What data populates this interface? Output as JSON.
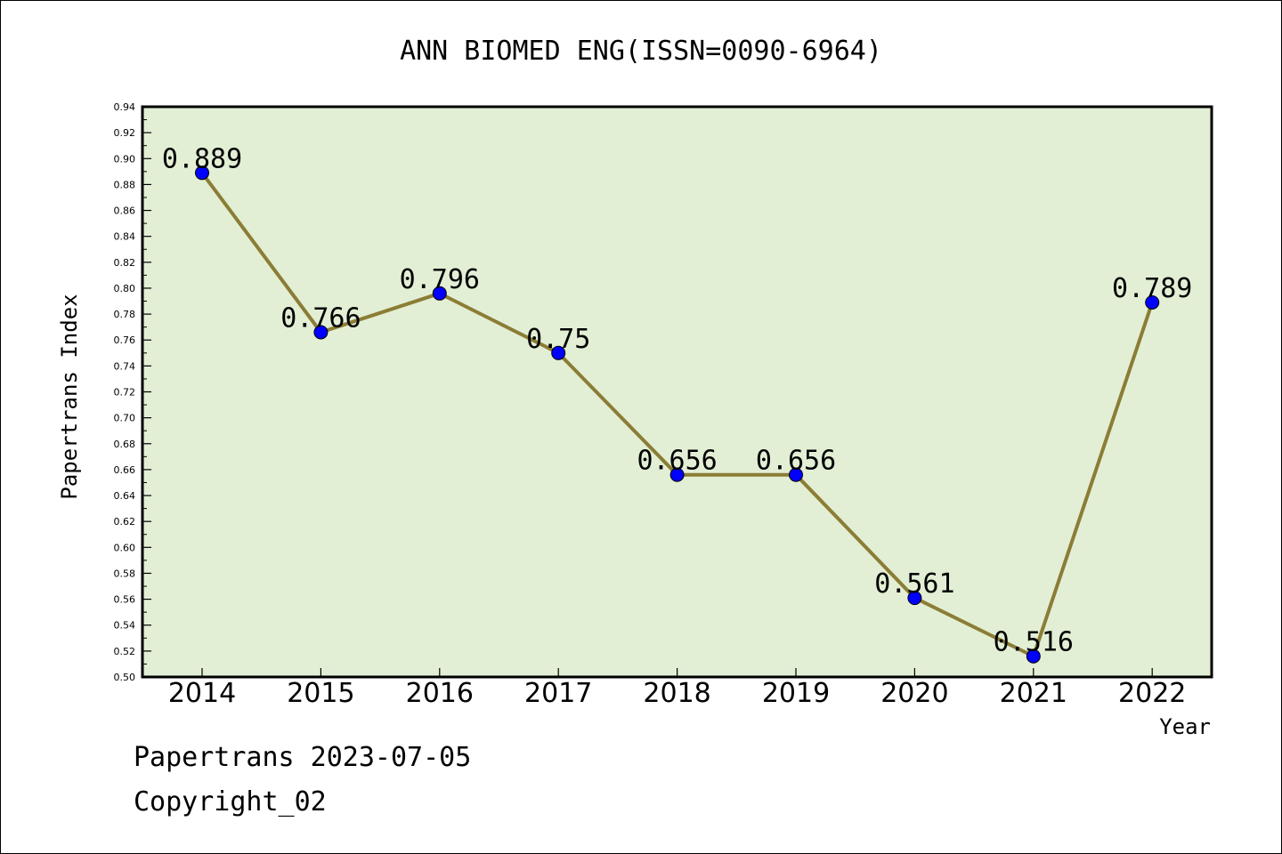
{
  "chart_data": {
    "type": "line",
    "title": "ANN BIOMED ENG(ISSN=0090-6964)",
    "xlabel": "Year",
    "ylabel": "Papertrans Index",
    "categories": [
      "2014",
      "2015",
      "2016",
      "2017",
      "2018",
      "2019",
      "2020",
      "2021",
      "2022"
    ],
    "series": [
      {
        "values": [
          0.889,
          0.766,
          0.796,
          0.75,
          0.656,
          0.656,
          0.561,
          0.516,
          0.789
        ],
        "data_labels": [
          "0.889",
          "0.766",
          "0.796",
          "0.75",
          "0.656",
          "0.656",
          "0.561",
          "0.516",
          "0.789"
        ]
      }
    ],
    "ylim": [
      0.5,
      0.94
    ],
    "yticks": [
      "0.50",
      "0.52",
      "0.54",
      "0.56",
      "0.58",
      "0.60",
      "0.62",
      "0.64",
      "0.66",
      "0.68",
      "0.70",
      "0.72",
      "0.74",
      "0.76",
      "0.78",
      "0.80",
      "0.82",
      "0.84",
      "0.86",
      "0.88",
      "0.90",
      "0.92",
      "0.94"
    ],
    "grid": false,
    "colors": {
      "plot_background": "#e2efd5",
      "line": "#8b7d35",
      "marker": "#0000ff",
      "axis": "#000000"
    }
  },
  "footer": {
    "line1": "Papertrans 2023-07-05",
    "line2": "Copyright_02"
  }
}
